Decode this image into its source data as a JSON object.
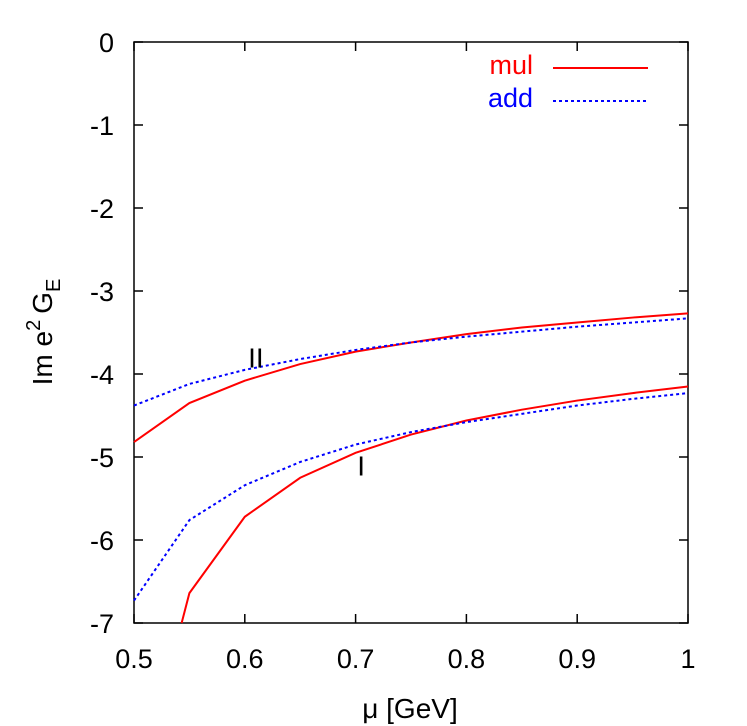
{
  "chart_data": {
    "type": "line",
    "xlabel_symbol": "μ",
    "xlabel_unit": "[GeV]",
    "ylabel": {
      "main": "Im e",
      "sup": "2",
      "g": "G",
      "sub": "E"
    },
    "xlim": [
      0.5,
      1
    ],
    "ylim": [
      -7,
      0
    ],
    "xticks": [
      0.5,
      0.6,
      0.7,
      0.8,
      0.9,
      1
    ],
    "xtick_labels": [
      "0.5",
      "0.6",
      "0.7",
      "0.8",
      "0.9",
      "1"
    ],
    "yticks": [
      0,
      -1,
      -2,
      -3,
      -4,
      -5,
      -6,
      -7
    ],
    "ytick_labels": [
      "0",
      "-1",
      "-2",
      "-3",
      "-4",
      "-5",
      "-6",
      "-7"
    ],
    "legend_position": "top-right",
    "series": [
      {
        "name": "mul",
        "color": "#ff0000",
        "dash": "solid",
        "curves": [
          {
            "label": "II",
            "x": [
              0.5,
              0.55,
              0.6,
              0.65,
              0.7,
              0.75,
              0.8,
              0.85,
              0.9,
              0.95,
              1.0
            ],
            "y": [
              -4.82,
              -4.35,
              -4.08,
              -3.88,
              -3.73,
              -3.62,
              -3.52,
              -3.44,
              -3.38,
              -3.32,
              -3.27
            ]
          },
          {
            "label": "I",
            "x": [
              0.543,
              0.55,
              0.6,
              0.65,
              0.7,
              0.75,
              0.8,
              0.85,
              0.9,
              0.95,
              1.0
            ],
            "y": [
              -7.0,
              -6.64,
              -5.72,
              -5.25,
              -4.95,
              -4.73,
              -4.56,
              -4.43,
              -4.32,
              -4.23,
              -4.15
            ]
          }
        ]
      },
      {
        "name": "add",
        "color": "#0000ff",
        "dash": "dotted",
        "curves": [
          {
            "label": "II",
            "x": [
              0.5,
              0.55,
              0.6,
              0.65,
              0.7,
              0.75,
              0.8,
              0.85,
              0.9,
              0.95,
              1.0
            ],
            "y": [
              -4.38,
              -4.12,
              -3.95,
              -3.82,
              -3.71,
              -3.62,
              -3.55,
              -3.49,
              -3.43,
              -3.38,
              -3.33
            ]
          },
          {
            "label": "I",
            "x": [
              0.5,
              0.55,
              0.6,
              0.65,
              0.7,
              0.75,
              0.8,
              0.85,
              0.9,
              0.95,
              1.0
            ],
            "y": [
              -6.73,
              -5.76,
              -5.34,
              -5.06,
              -4.85,
              -4.7,
              -4.58,
              -4.48,
              -4.38,
              -4.3,
              -4.23
            ]
          }
        ]
      }
    ],
    "annotations": [
      {
        "text": "II",
        "x": 0.61,
        "y": -3.8
      },
      {
        "text": "I",
        "x": 0.705,
        "y": -5.1
      }
    ]
  }
}
